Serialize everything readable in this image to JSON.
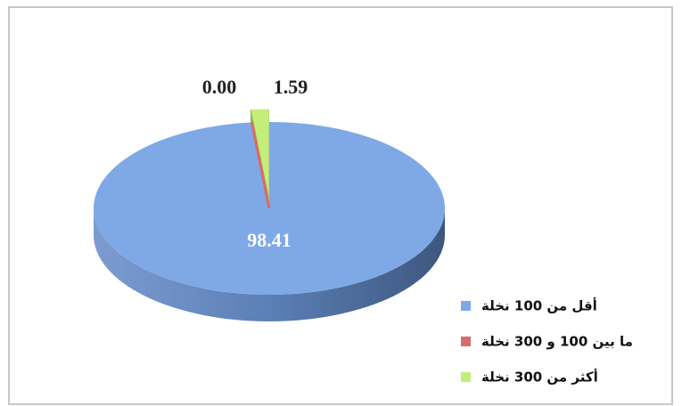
{
  "chart_data": {
    "type": "pie3d",
    "categories": [
      "أقل من 100 نخلة",
      "ما بين 100 و 300 نخلة",
      "أكثر من 300 نخلة"
    ],
    "values": [
      98.41,
      0,
      1.59
    ],
    "value_labels": [
      "98.41",
      "0.00",
      "1.59"
    ],
    "colors": [
      "#7ea9e6",
      "#d96b6b",
      "#c4ee7a"
    ],
    "legend": "right"
  }
}
